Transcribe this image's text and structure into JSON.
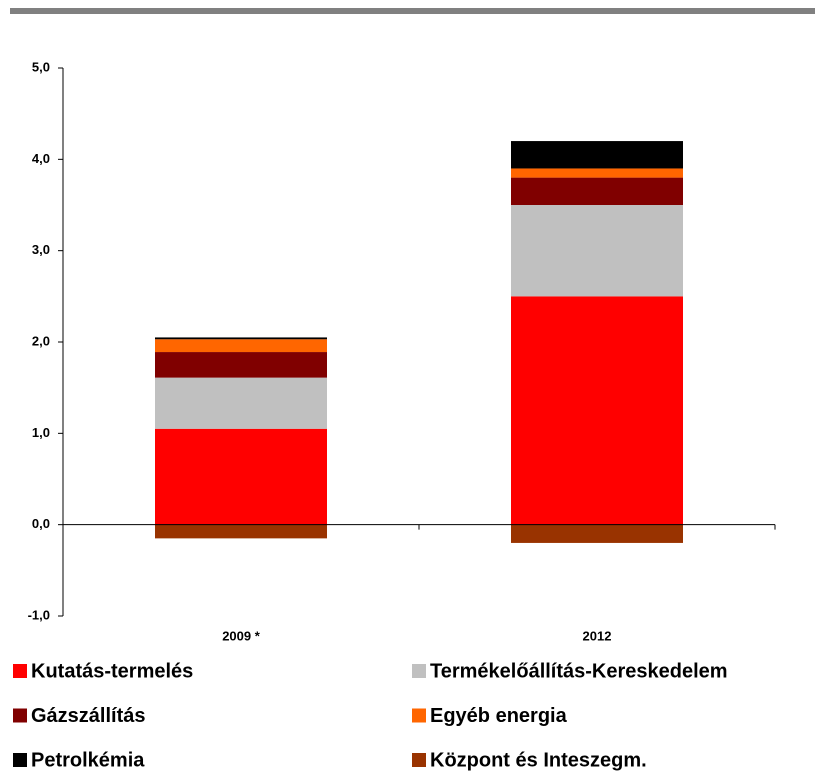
{
  "chart_data": {
    "type": "bar",
    "stacked": true,
    "categories": [
      "2009 *",
      "2012"
    ],
    "series": [
      {
        "name": "Kutatás-termelés",
        "color": "#ff0000",
        "values": [
          1.05,
          2.5
        ]
      },
      {
        "name": "Termékelőállítás-Kereskedelem",
        "color": "#c0c0c0",
        "values": [
          0.56,
          1.0
        ]
      },
      {
        "name": "Gázszállítás",
        "color": "#800000",
        "values": [
          0.28,
          0.3
        ]
      },
      {
        "name": "Egyéb energia",
        "color": "#ff6600",
        "values": [
          0.14,
          0.1
        ]
      },
      {
        "name": "Petrolkémia",
        "color": "#000000",
        "values": [
          0.02,
          0.3
        ]
      },
      {
        "name": "Központ és Inteszegm.",
        "color": "#993300",
        "values": [
          -0.15,
          -0.2
        ]
      }
    ],
    "ylim": [
      -1,
      5
    ],
    "yticks": [
      {
        "value": -1,
        "label": "-1,0"
      },
      {
        "value": 0,
        "label": "0,0"
      },
      {
        "value": 1,
        "label": "1,0"
      },
      {
        "value": 2,
        "label": "2,0"
      },
      {
        "value": 3,
        "label": "3,0"
      },
      {
        "value": 4,
        "label": "4,0"
      },
      {
        "value": 5,
        "label": "5,0"
      }
    ]
  }
}
